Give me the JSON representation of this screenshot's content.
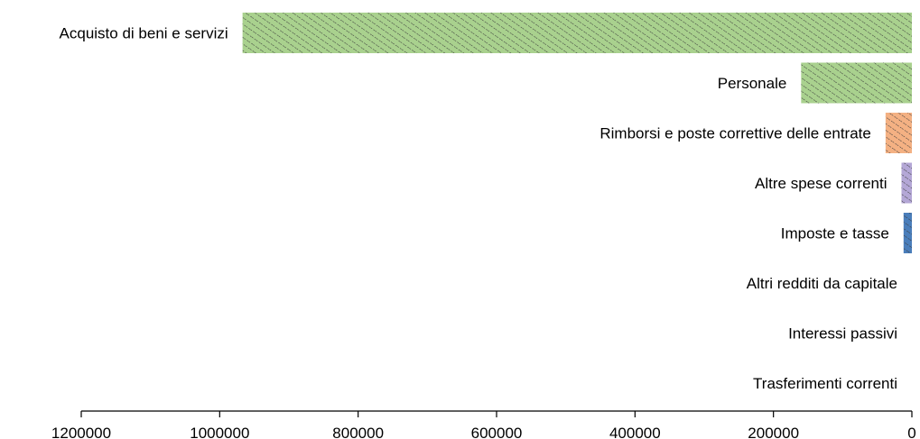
{
  "chart_data": {
    "type": "bar",
    "orientation": "horizontal",
    "x_axis": "reversed",
    "title": "",
    "xlabel": "",
    "ylabel": "",
    "xlim": [
      0,
      1200000
    ],
    "grid": false,
    "legend": "none",
    "x_ticks": [
      "1200000",
      "1000000",
      "800000",
      "600000",
      "400000",
      "200000",
      "0"
    ],
    "categories": [
      "Acquisto di beni e servizi",
      "Personale",
      "Rimborsi e poste correttive delle entrate",
      "Altre spese correnti",
      "Imposte e tasse",
      "Altri redditi da capitale",
      "Interessi passivi",
      "Trasferimenti correnti"
    ],
    "values": [
      967000,
      160000,
      38000,
      15000,
      12000,
      0,
      0,
      0
    ],
    "colors": [
      "#a9d18e",
      "#a9d18e",
      "#f4b183",
      "#b4a7d6",
      "#4a7ebb",
      "#a9d18e",
      "#a9d18e",
      "#a9d18e"
    ],
    "pattern": "hatched"
  }
}
